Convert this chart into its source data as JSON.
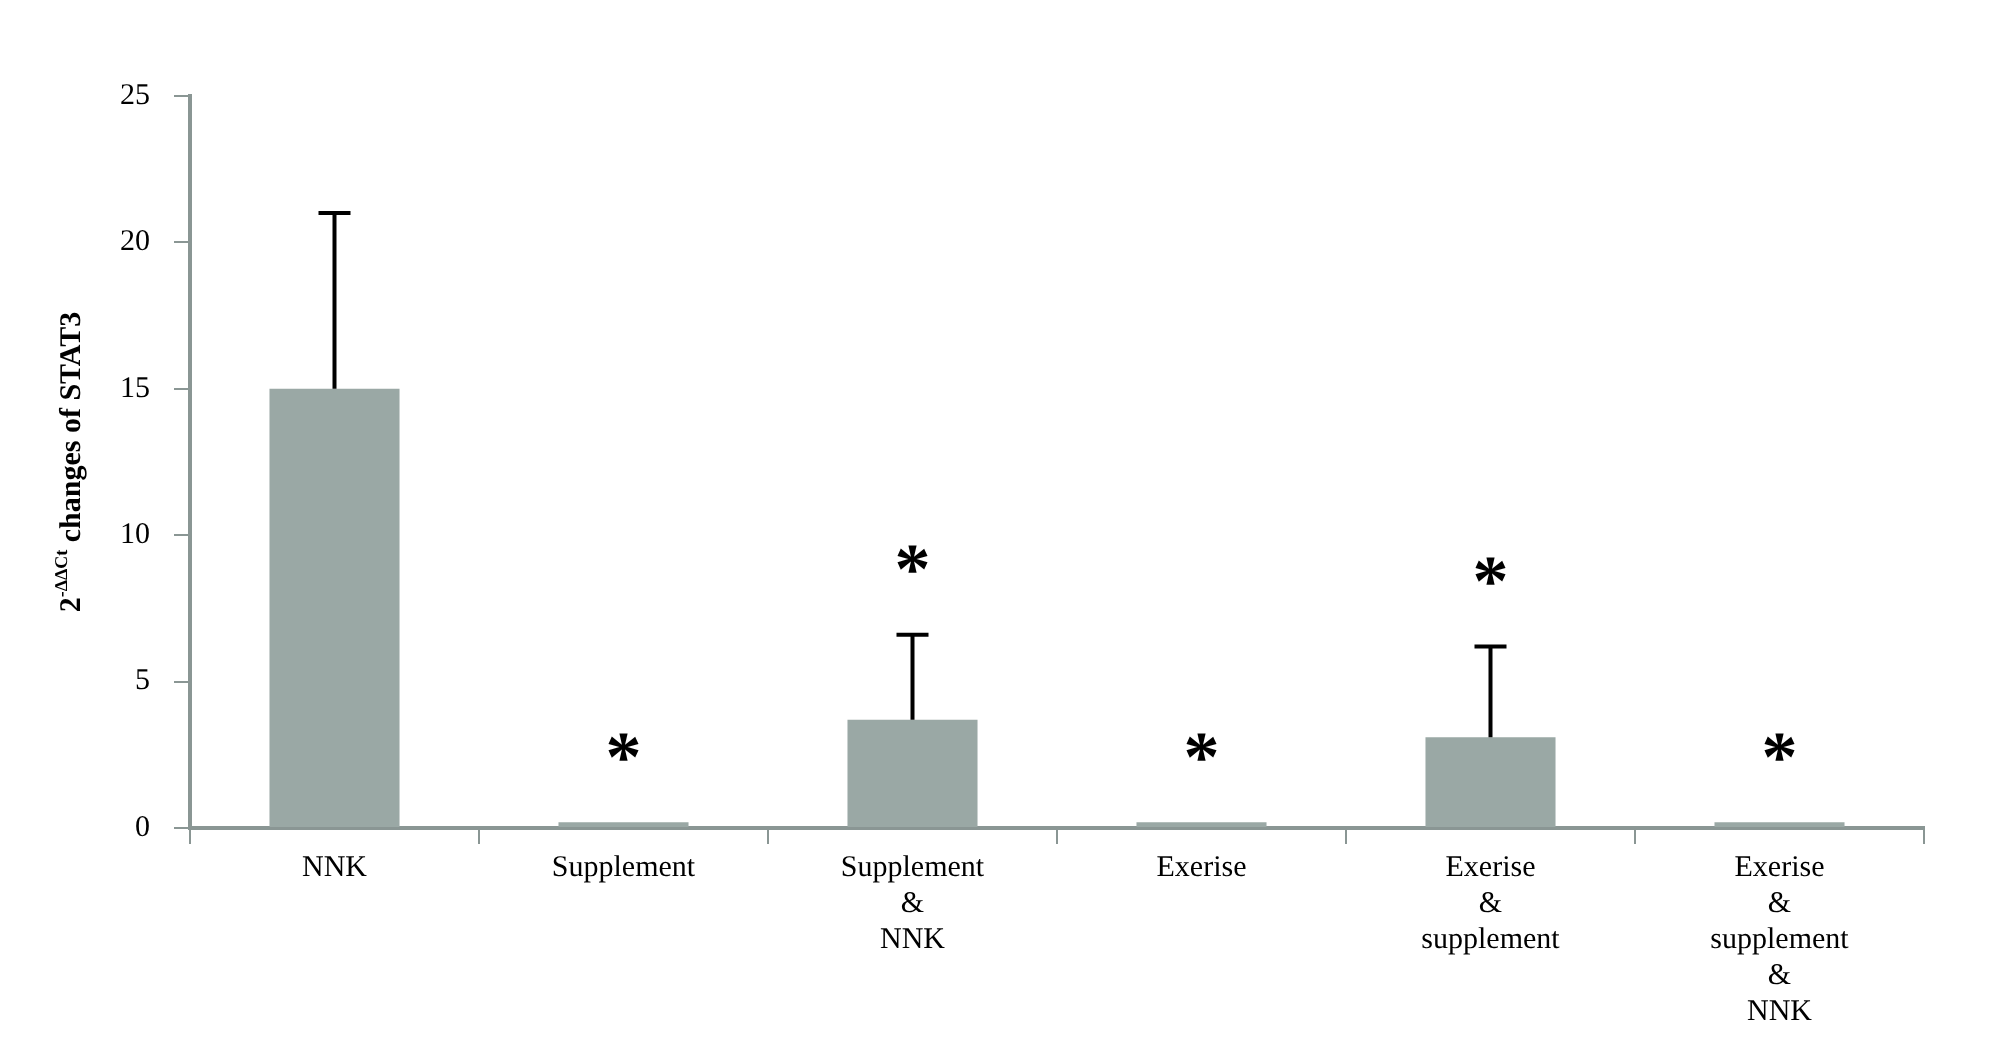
{
  "chart_data": {
    "type": "bar",
    "ylabel": "2$^{-ΔΔCt}$ changes of STAT3",
    "categories": [
      "NNK",
      "Supplement",
      "Supplement\n&\nNNK",
      "Exerise",
      "Exerise\n&\nsupplement",
      "Exerise\n&\nsupplement\n&\nNNK"
    ],
    "values": [
      15,
      0.2,
      3.7,
      0.2,
      3.1,
      0.2
    ],
    "errors": [
      [
        15,
        21
      ],
      null,
      [
        3.7,
        6.6
      ],
      null,
      [
        3.1,
        6.2
      ],
      null
    ],
    "color": "#9aa8a5",
    "ylim": [
      0,
      25
    ],
    "yticks": [
      0,
      5,
      10,
      15,
      20,
      25
    ],
    "grid": false,
    "legend": false,
    "annotations": [
      "*",
      "*",
      "*",
      "*",
      "*"
    ]
  }
}
